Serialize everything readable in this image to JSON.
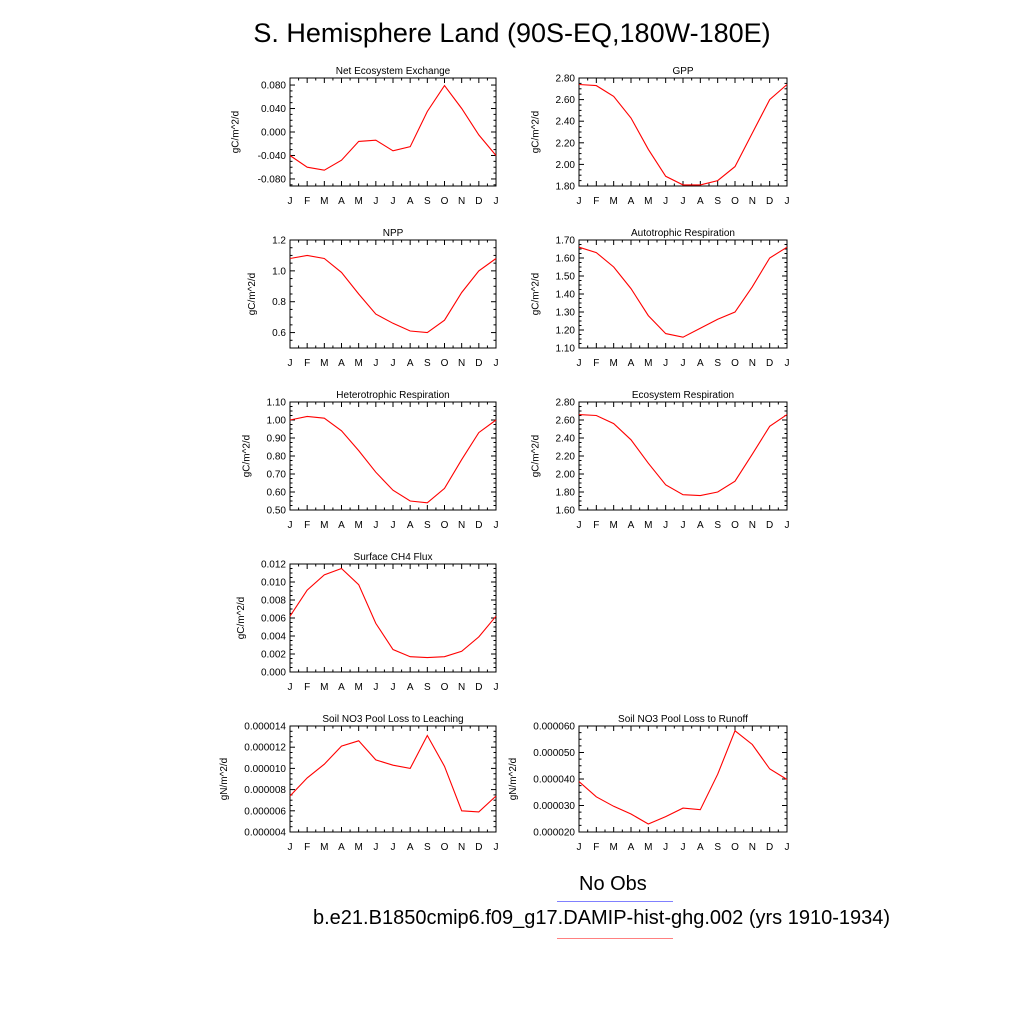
{
  "page": {
    "title": "S. Hemisphere Land (90S-EQ,180W-180E)"
  },
  "legend": {
    "entries": [
      {
        "label": "No Obs",
        "color": "#8080ff"
      },
      {
        "label": "b.e21.B1850cmip6.f09_g17.DAMIP-hist-ghg.002 (yrs 1910-1934)",
        "color": "#ff8080"
      }
    ]
  },
  "series_color": "#ff0000",
  "chart_data": [
    {
      "type": "line",
      "title": "Net Ecosystem Exchange",
      "ylabel": "gC/m^2/d",
      "categories": [
        "J",
        "F",
        "M",
        "A",
        "M",
        "J",
        "J",
        "A",
        "S",
        "O",
        "N",
        "D",
        "J"
      ],
      "values": [
        -0.04,
        -0.06,
        -0.065,
        -0.048,
        -0.016,
        -0.014,
        -0.032,
        -0.025,
        0.035,
        0.079,
        0.04,
        -0.005,
        -0.04
      ],
      "ylim": [
        -0.092,
        0.092
      ],
      "yticks": [
        -0.08,
        -0.04,
        0.0,
        0.04,
        0.08
      ],
      "ytick_labels": [
        "-0.080",
        "-0.040",
        "0.000",
        "0.040",
        "0.080"
      ],
      "grid": false
    },
    {
      "type": "line",
      "title": "GPP",
      "ylabel": "gC/m^2/d",
      "categories": [
        "J",
        "F",
        "M",
        "A",
        "M",
        "J",
        "J",
        "A",
        "S",
        "O",
        "N",
        "D",
        "J"
      ],
      "values": [
        2.74,
        2.73,
        2.63,
        2.43,
        2.14,
        1.89,
        1.81,
        1.81,
        1.85,
        1.98,
        2.29,
        2.6,
        2.74
      ],
      "ylim": [
        1.8,
        2.8
      ],
      "yticks": [
        1.8,
        2.0,
        2.2,
        2.4,
        2.6,
        2.8
      ],
      "ytick_labels": [
        "1.80",
        "2.00",
        "2.20",
        "2.40",
        "2.60",
        "2.80"
      ],
      "grid": false
    },
    {
      "type": "line",
      "title": "NPP",
      "ylabel": "gC/m^2/d",
      "categories": [
        "J",
        "F",
        "M",
        "A",
        "M",
        "J",
        "J",
        "A",
        "S",
        "O",
        "N",
        "D",
        "J"
      ],
      "values": [
        1.08,
        1.1,
        1.08,
        0.99,
        0.85,
        0.72,
        0.66,
        0.61,
        0.6,
        0.68,
        0.86,
        1.0,
        1.08
      ],
      "ylim": [
        0.5,
        1.2
      ],
      "yticks": [
        0.6,
        0.8,
        1.0,
        1.2
      ],
      "ytick_labels": [
        "0.6",
        "0.8",
        "1.0",
        "1.2"
      ],
      "grid": false
    },
    {
      "type": "line",
      "title": "Autotrophic Respiration",
      "ylabel": "gC/m^2/d",
      "categories": [
        "J",
        "F",
        "M",
        "A",
        "M",
        "J",
        "J",
        "A",
        "S",
        "O",
        "N",
        "D",
        "J"
      ],
      "values": [
        1.66,
        1.63,
        1.55,
        1.43,
        1.28,
        1.18,
        1.16,
        1.21,
        1.26,
        1.3,
        1.44,
        1.6,
        1.66
      ],
      "ylim": [
        1.1,
        1.7
      ],
      "yticks": [
        1.1,
        1.2,
        1.3,
        1.4,
        1.5,
        1.6,
        1.7
      ],
      "ytick_labels": [
        "1.10",
        "1.20",
        "1.30",
        "1.40",
        "1.50",
        "1.60",
        "1.70"
      ],
      "grid": false
    },
    {
      "type": "line",
      "title": "Heterotrophic Respiration",
      "ylabel": "gC/m^2/d",
      "categories": [
        "J",
        "F",
        "M",
        "A",
        "M",
        "J",
        "J",
        "A",
        "S",
        "O",
        "N",
        "D",
        "J"
      ],
      "values": [
        1.0,
        1.02,
        1.01,
        0.94,
        0.83,
        0.71,
        0.61,
        0.55,
        0.54,
        0.62,
        0.78,
        0.93,
        1.0
      ],
      "ylim": [
        0.5,
        1.1
      ],
      "yticks": [
        0.5,
        0.6,
        0.7,
        0.8,
        0.9,
        1.0,
        1.1
      ],
      "ytick_labels": [
        "0.50",
        "0.60",
        "0.70",
        "0.80",
        "0.90",
        "1.00",
        "1.10"
      ],
      "grid": false
    },
    {
      "type": "line",
      "title": "Ecosystem Respiration",
      "ylabel": "gC/m^2/d",
      "categories": [
        "J",
        "F",
        "M",
        "A",
        "M",
        "J",
        "J",
        "A",
        "S",
        "O",
        "N",
        "D",
        "J"
      ],
      "values": [
        2.66,
        2.65,
        2.56,
        2.38,
        2.12,
        1.88,
        1.77,
        1.76,
        1.8,
        1.92,
        2.22,
        2.53,
        2.66
      ],
      "ylim": [
        1.6,
        2.8
      ],
      "yticks": [
        1.6,
        1.8,
        2.0,
        2.2,
        2.4,
        2.6,
        2.8
      ],
      "ytick_labels": [
        "1.60",
        "1.80",
        "2.00",
        "2.20",
        "2.40",
        "2.60",
        "2.80"
      ],
      "grid": false
    },
    {
      "type": "line",
      "title": "Surface CH4 Flux",
      "ylabel": "gC/m^2/d",
      "categories": [
        "J",
        "F",
        "M",
        "A",
        "M",
        "J",
        "J",
        "A",
        "S",
        "O",
        "N",
        "D",
        "J"
      ],
      "values": [
        0.0062,
        0.0091,
        0.0108,
        0.0115,
        0.0097,
        0.0054,
        0.0025,
        0.0017,
        0.0016,
        0.0017,
        0.0023,
        0.0039,
        0.0062
      ],
      "ylim": [
        0.0,
        0.012
      ],
      "yticks": [
        0.0,
        0.002,
        0.004,
        0.006,
        0.008,
        0.01,
        0.012
      ],
      "ytick_labels": [
        "0.000",
        "0.002",
        "0.004",
        "0.006",
        "0.008",
        "0.010",
        "0.012"
      ],
      "grid": false
    },
    null,
    {
      "type": "line",
      "title": "Soil NO3 Pool Loss to Leaching",
      "ylabel": "gN/m^2/d",
      "categories": [
        "J",
        "F",
        "M",
        "A",
        "M",
        "J",
        "J",
        "A",
        "S",
        "O",
        "N",
        "D",
        "J"
      ],
      "values": [
        7.4e-06,
        9.1e-06,
        1.04e-05,
        1.21e-05,
        1.26e-05,
        1.08e-05,
        1.03e-05,
        1e-05,
        1.31e-05,
        1.02e-05,
        6e-06,
        5.9e-06,
        7.4e-06
      ],
      "ylim": [
        4e-06,
        1.4e-05
      ],
      "yticks": [
        4e-06,
        6e-06,
        8e-06,
        1e-05,
        1.2e-05,
        1.4e-05
      ],
      "ytick_labels": [
        "0.000004",
        "0.000006",
        "0.000008",
        "0.000010",
        "0.000012",
        "0.000014"
      ],
      "grid": false
    },
    {
      "type": "line",
      "title": "Soil NO3 Pool Loss to Runoff",
      "ylabel": "gN/m^2/d",
      "categories": [
        "J",
        "F",
        "M",
        "A",
        "M",
        "J",
        "J",
        "A",
        "S",
        "O",
        "N",
        "D",
        "J"
      ],
      "values": [
        3.9e-05,
        3.33e-05,
        2.97e-05,
        2.68e-05,
        2.3e-05,
        2.58e-05,
        2.9e-05,
        2.84e-05,
        4.18e-05,
        5.82e-05,
        5.3e-05,
        4.38e-05,
        3.98e-05
      ],
      "ylim": [
        2e-05,
        6e-05
      ],
      "yticks": [
        2e-05,
        3e-05,
        4e-05,
        5e-05,
        6e-05
      ],
      "ytick_labels": [
        "0.000020",
        "0.000030",
        "0.000040",
        "0.000050",
        "0.000060"
      ],
      "grid": false
    }
  ]
}
